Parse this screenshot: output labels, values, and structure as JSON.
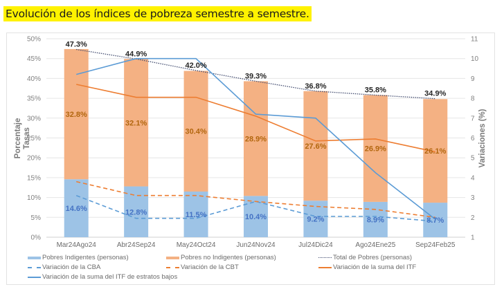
{
  "page": {
    "title": "Evolución de los índices de pobreza semestre a semestre."
  },
  "chart_data": {
    "type": "bar",
    "subtype": "stacked-bar-with-lines-dual-axis",
    "title": "Evolución de los índices de pobreza semestre a semestre.",
    "categories": [
      "Mar24Ago24",
      "Abr24Sep24",
      "May24Oct24",
      "Jun24Nov24",
      "Jul24Dic24",
      "Ago24Ene25",
      "Sep24Feb25"
    ],
    "ylabel_left": [
      "Porcentaje",
      "Tasas"
    ],
    "ylabel_right": "Variaciones (%)",
    "ylim_left": [
      0,
      50
    ],
    "yticks_left": [
      "0%",
      "5%",
      "10%",
      "15%",
      "20%",
      "25%",
      "30%",
      "35%",
      "40%",
      "45%",
      "50%"
    ],
    "ylim_right": [
      1,
      11
    ],
    "yticks_right": [
      "1",
      "2",
      "3",
      "4",
      "5",
      "6",
      "7",
      "8",
      "9",
      "10",
      "11"
    ],
    "grid": true,
    "legend_position": "bottom",
    "series": [
      {
        "name": "Pobres Indigentes (personas)",
        "type": "bar",
        "axis": "left",
        "stack": "pobres",
        "color": "#9dc3e6",
        "values": [
          14.6,
          12.8,
          11.5,
          10.4,
          9.2,
          8.9,
          8.7
        ],
        "labels": [
          "14.6%",
          "12.8%",
          "11.5%",
          "10.4%",
          "9.2%",
          "8.9%",
          "8.7%"
        ],
        "label_color": "#4472c4"
      },
      {
        "name": "Pobres no Indigentes (personas)",
        "type": "bar",
        "axis": "left",
        "stack": "pobres",
        "color": "#f4b183",
        "values": [
          32.8,
          32.1,
          30.4,
          28.9,
          27.6,
          26.9,
          26.1
        ],
        "labels": [
          "32.8%",
          "32.1%",
          "30.4%",
          "28.9%",
          "27.6%",
          "26.9%",
          "26.1%"
        ],
        "label_color": "#b2660e"
      },
      {
        "name": "Total de Pobres (personas)",
        "type": "line",
        "style": "dotted",
        "axis": "left",
        "color": "#404a6e",
        "values": [
          47.3,
          44.9,
          42.0,
          39.3,
          36.8,
          35.8,
          34.9
        ],
        "labels": [
          "47.3%",
          "44.9%",
          "42.0%",
          "39.3%",
          "36.8%",
          "35.8%",
          "34.9%"
        ],
        "label_color": "#262626"
      },
      {
        "name": "Variación de la CBA",
        "type": "line",
        "style": "dashed",
        "axis": "right",
        "color": "#5b9bd5",
        "values": [
          3.1,
          1.95,
          1.95,
          2.8,
          2.05,
          2.05,
          1.8
        ]
      },
      {
        "name": "Variación de la CBT",
        "type": "line",
        "style": "dashed",
        "axis": "right",
        "color": "#ed7d31",
        "values": [
          3.8,
          3.1,
          3.1,
          2.8,
          2.55,
          2.4,
          2.0
        ]
      },
      {
        "name": "Variación de la suma del ITF",
        "type": "line",
        "style": "solid",
        "axis": "right",
        "color": "#ed7d31",
        "values": [
          8.7,
          8.05,
          8.05,
          7.1,
          5.85,
          5.95,
          5.3
        ]
      },
      {
        "name": "Variación de la suma del ITF de estratos bajos",
        "type": "line",
        "style": "solid",
        "axis": "right",
        "color": "#5b9bd5",
        "values": [
          9.2,
          10.0,
          10.0,
          7.2,
          7.0,
          4.25,
          1.9
        ]
      }
    ],
    "legend": [
      {
        "label": "Pobres Indigentes (personas)",
        "swatch": "bar",
        "color": "#9dc3e6"
      },
      {
        "label": "Pobres no Indigentes (personas)",
        "swatch": "bar",
        "color": "#f4b183"
      },
      {
        "label": "Total de Pobres (personas)",
        "swatch": "dotted",
        "color": "#404a6e"
      },
      {
        "label": "Variación de la CBA",
        "swatch": "dashed",
        "color": "#5b9bd5"
      },
      {
        "label": "Variación de la CBT",
        "swatch": "dashed",
        "color": "#ed7d31"
      },
      {
        "label": "Variación de la suma del ITF",
        "swatch": "solid",
        "color": "#ed7d31"
      },
      {
        "label": "Variación de la suma del ITF de estratos bajos",
        "swatch": "solid",
        "color": "#5b9bd5"
      }
    ]
  }
}
